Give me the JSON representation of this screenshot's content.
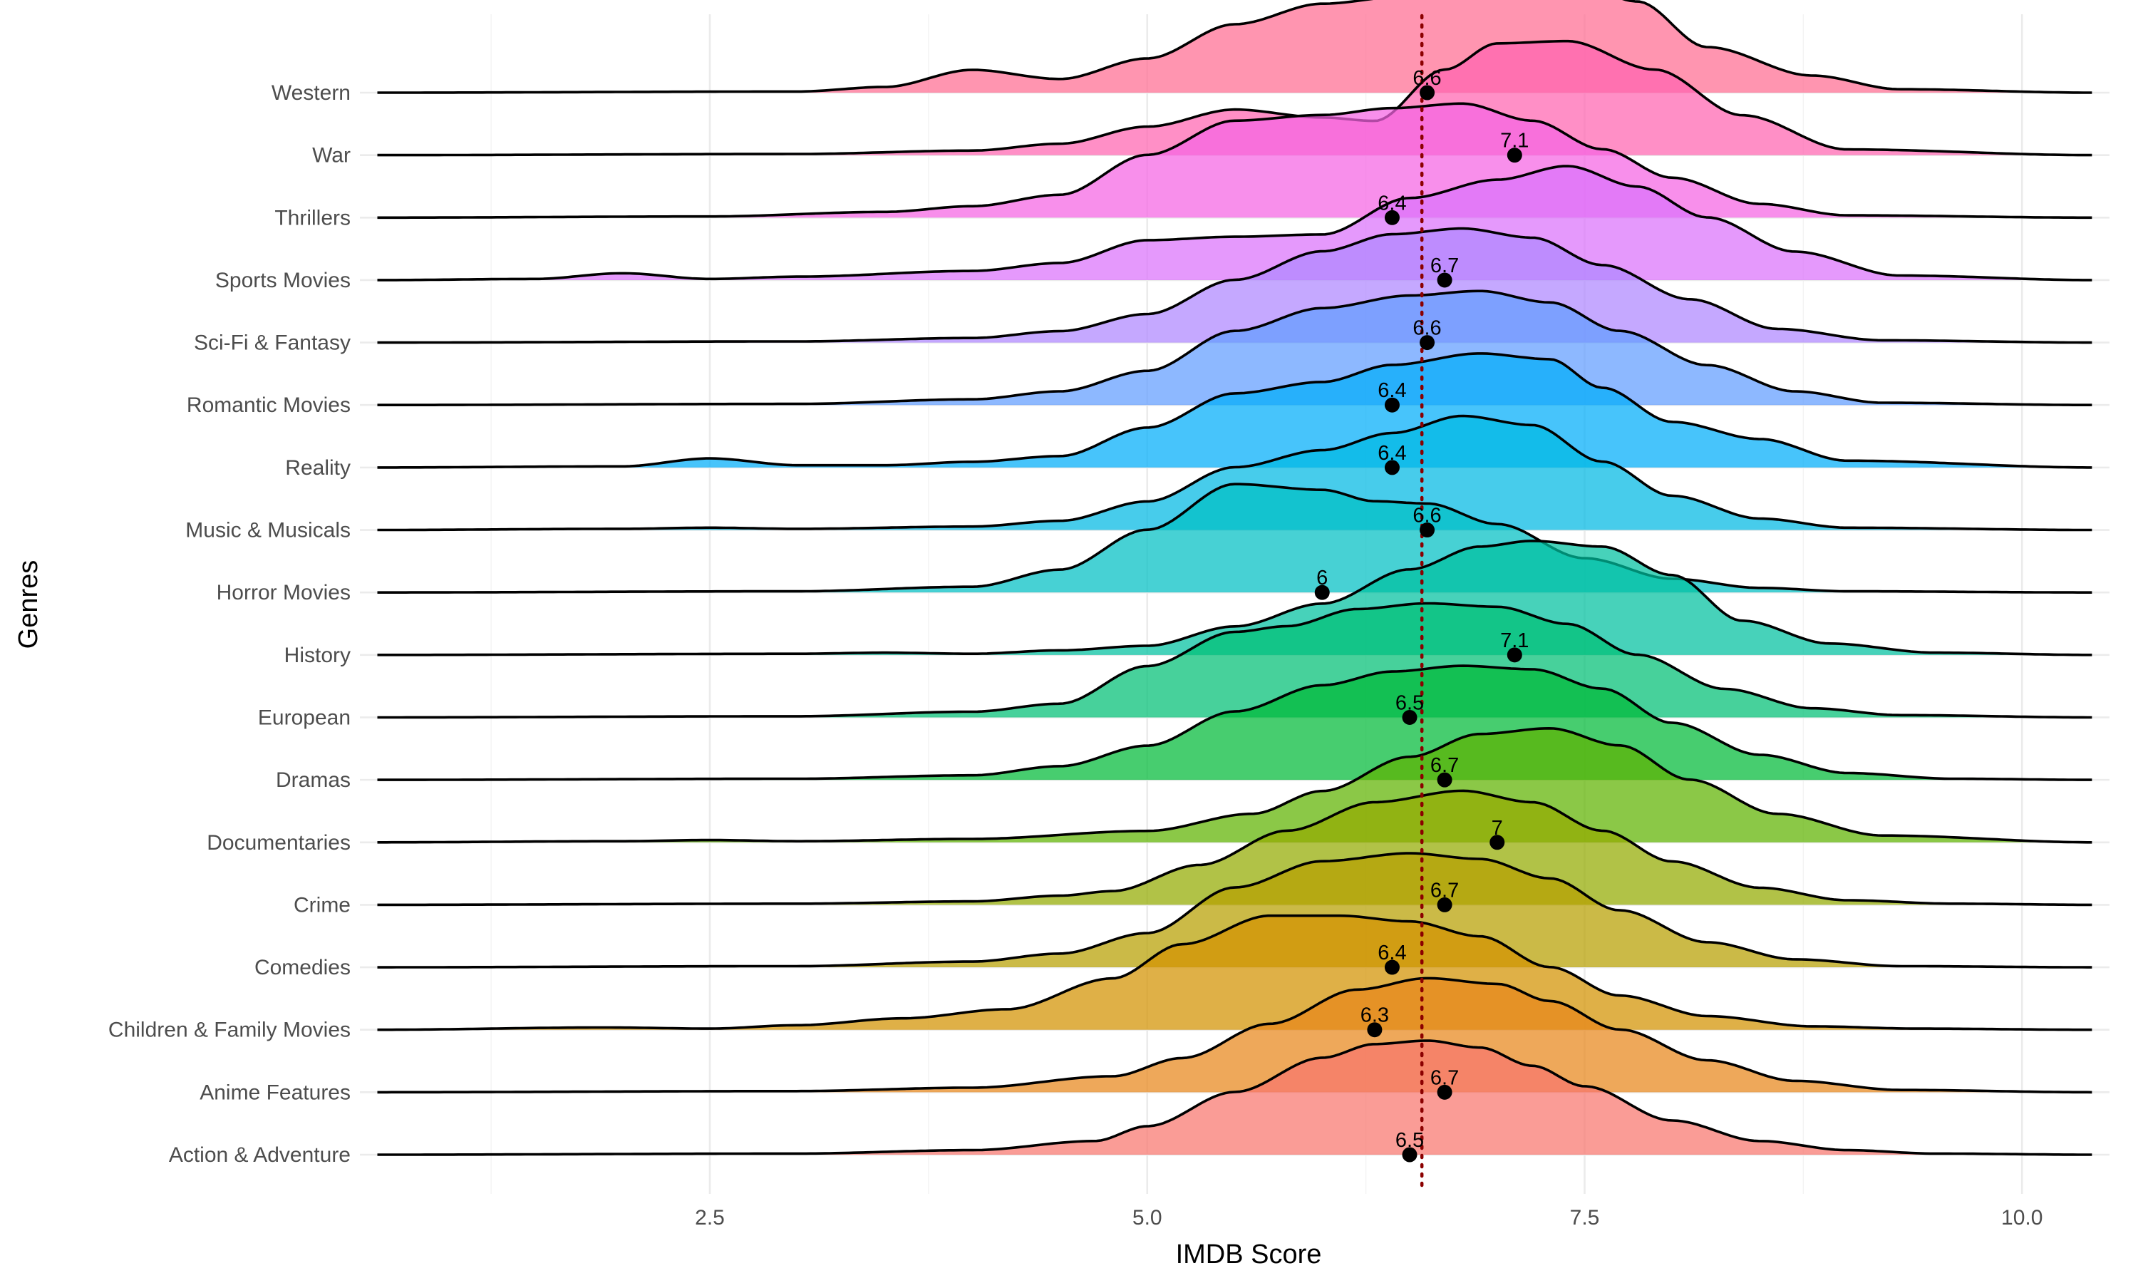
{
  "chart_data": {
    "type": "ridgeline",
    "title": "",
    "xlabel": "IMDB Score",
    "ylabel": "Genres",
    "xlim": [
      0.5,
      10.5
    ],
    "x_ticks": [
      2.5,
      5.0,
      7.5,
      10.0
    ],
    "x_tick_labels": [
      "2.5",
      "5.0",
      "7.5",
      "10.0"
    ],
    "overall_reference_line": 6.57,
    "grid": true,
    "legend": "none",
    "series": [
      {
        "name": "Action & Adventure",
        "mean": 6.5,
        "label": "6.5",
        "color": "#f8766d",
        "density_x": [
          0.6,
          3.0,
          4.0,
          4.7,
          5.0,
          5.5,
          6.0,
          6.3,
          6.6,
          6.9,
          7.2,
          7.5,
          8.0,
          8.5,
          9.0,
          9.5,
          10.4
        ],
        "density_y": [
          0,
          0.01,
          0.04,
          0.12,
          0.25,
          0.55,
          0.85,
          0.97,
          1.0,
          0.94,
          0.78,
          0.6,
          0.3,
          0.12,
          0.04,
          0.01,
          0
        ]
      },
      {
        "name": "Anime Features",
        "mean": 6.7,
        "label": "6.7",
        "color": "#e7861b",
        "density_x": [
          0.6,
          3.0,
          4.0,
          4.8,
          5.2,
          5.7,
          6.2,
          6.6,
          7.0,
          7.3,
          7.7,
          8.2,
          8.7,
          9.3,
          10.4
        ],
        "density_y": [
          0,
          0.01,
          0.04,
          0.14,
          0.3,
          0.6,
          0.9,
          1.0,
          0.95,
          0.8,
          0.55,
          0.28,
          0.1,
          0.02,
          0
        ]
      },
      {
        "name": "Children & Family Movies",
        "mean": 6.3,
        "label": "6.3",
        "color": "#d39200",
        "density_x": [
          0.6,
          1.9,
          2.5,
          3.0,
          3.6,
          4.2,
          4.8,
          5.2,
          5.7,
          6.1,
          6.5,
          6.9,
          7.3,
          7.7,
          8.2,
          8.8,
          9.4,
          10.4
        ],
        "density_y": [
          0,
          0.02,
          0.01,
          0.04,
          0.1,
          0.18,
          0.45,
          0.75,
          1.0,
          1.0,
          0.95,
          0.82,
          0.55,
          0.3,
          0.12,
          0.03,
          0.01,
          0
        ]
      },
      {
        "name": "Comedies",
        "mean": 6.4,
        "label": "6.4",
        "color": "#b79f00",
        "density_x": [
          0.6,
          3.0,
          4.0,
          4.5,
          5.0,
          5.5,
          6.0,
          6.5,
          6.9,
          7.3,
          7.7,
          8.2,
          8.7,
          9.3,
          10.4
        ],
        "density_y": [
          0,
          0.01,
          0.05,
          0.12,
          0.3,
          0.7,
          0.93,
          1.0,
          0.95,
          0.78,
          0.5,
          0.22,
          0.07,
          0.01,
          0
        ]
      },
      {
        "name": "Crime",
        "mean": 6.7,
        "label": "6.7",
        "color": "#93aa00",
        "density_x": [
          0.6,
          3.0,
          4.0,
          4.5,
          4.8,
          5.3,
          5.8,
          6.3,
          6.8,
          7.2,
          7.6,
          8.0,
          8.5,
          9.0,
          9.6,
          10.4
        ],
        "density_y": [
          0,
          0.01,
          0.03,
          0.08,
          0.12,
          0.35,
          0.65,
          0.9,
          1.0,
          0.9,
          0.65,
          0.38,
          0.15,
          0.04,
          0.01,
          0
        ]
      },
      {
        "name": "Documentaries",
        "mean": 7.0,
        "label": "7",
        "color": "#5eb300",
        "density_x": [
          0.6,
          2.0,
          2.5,
          3.0,
          4.0,
          5.0,
          5.6,
          6.0,
          6.5,
          6.9,
          7.3,
          7.7,
          8.1,
          8.6,
          9.2,
          10.4
        ],
        "density_y": [
          0,
          0.01,
          0.02,
          0.01,
          0.03,
          0.1,
          0.25,
          0.45,
          0.75,
          0.95,
          1.0,
          0.85,
          0.55,
          0.25,
          0.06,
          0
        ]
      },
      {
        "name": "Dramas",
        "mean": 6.7,
        "label": "6.7",
        "color": "#00ba38",
        "density_x": [
          0.6,
          3.0,
          4.0,
          4.5,
          5.0,
          5.5,
          6.0,
          6.4,
          6.8,
          7.2,
          7.6,
          8.0,
          8.5,
          9.0,
          9.6,
          10.4
        ],
        "density_y": [
          0,
          0.01,
          0.04,
          0.12,
          0.3,
          0.6,
          0.83,
          0.95,
          1.0,
          0.97,
          0.8,
          0.5,
          0.22,
          0.06,
          0.01,
          0
        ]
      },
      {
        "name": "European",
        "mean": 6.5,
        "label": "6.5",
        "color": "#00bf74",
        "density_x": [
          0.6,
          3.0,
          4.0,
          4.5,
          5.0,
          5.5,
          5.8,
          6.2,
          6.6,
          7.0,
          7.4,
          7.8,
          8.3,
          8.8,
          9.3,
          10.4
        ],
        "density_y": [
          0,
          0.01,
          0.05,
          0.12,
          0.45,
          0.75,
          0.8,
          0.95,
          1.0,
          0.97,
          0.82,
          0.55,
          0.25,
          0.08,
          0.02,
          0
        ]
      },
      {
        "name": "History",
        "mean": 7.1,
        "label": "7.1",
        "color": "#00c19f",
        "density_x": [
          0.6,
          3.0,
          3.5,
          4.0,
          4.5,
          5.0,
          5.5,
          6.0,
          6.5,
          6.9,
          7.2,
          7.6,
          8.0,
          8.4,
          8.9,
          9.5,
          10.4
        ],
        "density_y": [
          0,
          0.01,
          0.02,
          0.01,
          0.04,
          0.08,
          0.25,
          0.45,
          0.75,
          0.95,
          1.0,
          0.95,
          0.7,
          0.3,
          0.1,
          0.02,
          0
        ]
      },
      {
        "name": "Horror Movies",
        "mean": 6.0,
        "label": "6",
        "color": "#00bfc4",
        "density_x": [
          0.6,
          3.0,
          4.0,
          4.5,
          5.0,
          5.5,
          6.0,
          6.3,
          6.6,
          7.0,
          7.5,
          8.0,
          8.5,
          9.0,
          10.4
        ],
        "density_y": [
          0,
          0.01,
          0.05,
          0.2,
          0.55,
          0.95,
          0.9,
          0.8,
          0.78,
          0.6,
          0.3,
          0.12,
          0.04,
          0.01,
          0
        ]
      },
      {
        "name": "Music & Musicals",
        "mean": 6.6,
        "label": "6.6",
        "color": "#00b9e3",
        "density_x": [
          0.6,
          2.0,
          2.5,
          3.0,
          4.0,
          4.5,
          5.0,
          5.5,
          6.0,
          6.4,
          6.8,
          7.2,
          7.6,
          8.0,
          8.5,
          9.0,
          10.4
        ],
        "density_y": [
          0,
          0.01,
          0.02,
          0.01,
          0.03,
          0.08,
          0.25,
          0.55,
          0.7,
          0.85,
          1.0,
          0.92,
          0.6,
          0.3,
          0.1,
          0.02,
          0
        ]
      },
      {
        "name": "Reality",
        "mean": 6.4,
        "label": "6.4",
        "color": "#00adfa",
        "density_x": [
          0.6,
          2.0,
          2.5,
          3.0,
          3.5,
          4.0,
          4.5,
          5.0,
          5.5,
          6.0,
          6.4,
          6.9,
          7.3,
          7.6,
          8.0,
          8.5,
          9.0,
          10.4
        ],
        "density_y": [
          0,
          0.01,
          0.08,
          0.02,
          0.02,
          0.05,
          0.1,
          0.35,
          0.65,
          0.75,
          0.9,
          1.0,
          0.95,
          0.7,
          0.4,
          0.25,
          0.06,
          0
        ]
      },
      {
        "name": "Romantic Movies",
        "mean": 6.4,
        "label": "6.4",
        "color": "#619cff",
        "density_x": [
          0.6,
          3.0,
          4.0,
          4.5,
          5.0,
          5.5,
          6.0,
          6.5,
          6.9,
          7.3,
          7.7,
          8.2,
          8.7,
          9.2,
          10.4
        ],
        "density_y": [
          0,
          0.01,
          0.05,
          0.12,
          0.3,
          0.65,
          0.85,
          0.96,
          1.0,
          0.9,
          0.65,
          0.35,
          0.12,
          0.02,
          0
        ]
      },
      {
        "name": "Sci-Fi & Fantasy",
        "mean": 6.6,
        "label": "6.6",
        "color": "#ae87ff",
        "density_x": [
          0.6,
          3.0,
          4.0,
          4.5,
          5.0,
          5.5,
          6.0,
          6.4,
          6.8,
          7.2,
          7.6,
          8.1,
          8.6,
          9.2,
          10.4
        ],
        "density_y": [
          0,
          0.01,
          0.04,
          0.1,
          0.25,
          0.55,
          0.8,
          0.95,
          1.0,
          0.92,
          0.68,
          0.38,
          0.12,
          0.02,
          0
        ]
      },
      {
        "name": "Sports Movies",
        "mean": 6.7,
        "label": "6.7",
        "color": "#db72fb",
        "density_x": [
          0.6,
          1.5,
          2.0,
          2.5,
          3.0,
          4.0,
          4.5,
          5.0,
          5.5,
          6.0,
          6.5,
          7.0,
          7.4,
          7.8,
          8.2,
          8.7,
          9.3,
          10.4
        ],
        "density_y": [
          0,
          0.01,
          0.06,
          0.01,
          0.03,
          0.08,
          0.15,
          0.35,
          0.38,
          0.4,
          0.72,
          0.88,
          1.0,
          0.82,
          0.55,
          0.25,
          0.04,
          0
        ]
      },
      {
        "name": "Thrillers",
        "mean": 6.4,
        "label": "6.4",
        "color": "#f564e3",
        "density_x": [
          0.6,
          2.5,
          3.5,
          4.0,
          4.5,
          5.0,
          5.5,
          6.0,
          6.4,
          6.8,
          7.2,
          7.6,
          8.0,
          8.5,
          9.0,
          10.4
        ],
        "density_y": [
          0,
          0.01,
          0.05,
          0.1,
          0.2,
          0.55,
          0.85,
          0.9,
          0.96,
          1.0,
          0.85,
          0.6,
          0.35,
          0.12,
          0.02,
          0
        ]
      },
      {
        "name": "War",
        "mean": 7.1,
        "label": "7.1",
        "color": "#ff64b0",
        "density_x": [
          0.6,
          3.0,
          4.0,
          4.5,
          5.0,
          5.5,
          6.0,
          6.3,
          6.7,
          7.0,
          7.4,
          7.9,
          8.4,
          9.0,
          10.4
        ],
        "density_y": [
          0,
          0.01,
          0.04,
          0.1,
          0.25,
          0.4,
          0.33,
          0.3,
          0.75,
          0.98,
          1.0,
          0.75,
          0.35,
          0.05,
          0
        ]
      },
      {
        "name": "Western",
        "mean": 6.6,
        "label": "6.6",
        "color": "#ff6c91",
        "density_x": [
          0.6,
          3.0,
          3.5,
          4.0,
          4.5,
          5.0,
          5.5,
          6.0,
          6.5,
          7.0,
          7.4,
          7.8,
          8.2,
          8.8,
          9.3,
          10.4
        ],
        "density_y": [
          0,
          0.01,
          0.05,
          0.2,
          0.12,
          0.3,
          0.6,
          0.78,
          0.85,
          0.9,
          1.0,
          0.8,
          0.4,
          0.15,
          0.03,
          0
        ]
      }
    ]
  }
}
